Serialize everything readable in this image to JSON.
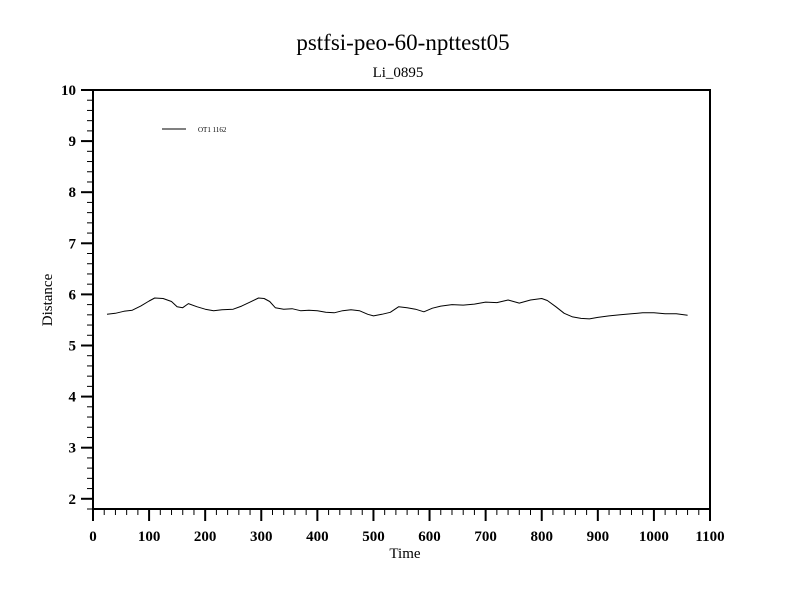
{
  "chart_data": {
    "type": "line",
    "title": "pstfsi-peo-60-npttest05",
    "subtitle": "Li_0895",
    "xlabel": "Time",
    "ylabel": "Distance",
    "xlim": [
      0,
      1100
    ],
    "ylim": [
      1.8,
      10
    ],
    "xticks": [
      0,
      100,
      200,
      300,
      400,
      500,
      600,
      700,
      800,
      900,
      1000,
      1100
    ],
    "yticks": [
      2,
      3,
      4,
      5,
      6,
      7,
      8,
      9,
      10
    ],
    "x_minor_step": 20,
    "y_minor_step": 0.2,
    "grid": false,
    "legend_position": "top-left",
    "series": [
      {
        "name": "OT1 1162",
        "color": "#000000",
        "x": [
          25,
          40,
          55,
          70,
          85,
          100,
          110,
          125,
          140,
          150,
          160,
          170,
          185,
          200,
          215,
          230,
          250,
          265,
          280,
          295,
          305,
          315,
          325,
          340,
          355,
          370,
          385,
          400,
          415,
          430,
          445,
          460,
          475,
          490,
          500,
          515,
          530,
          545,
          560,
          575,
          590,
          605,
          620,
          640,
          660,
          680,
          700,
          720,
          740,
          760,
          780,
          800,
          810,
          825,
          840,
          855,
          870,
          885,
          900,
          920,
          940,
          960,
          980,
          1000,
          1020,
          1040,
          1060
        ],
        "y": [
          5.61,
          5.63,
          5.67,
          5.69,
          5.77,
          5.87,
          5.93,
          5.92,
          5.86,
          5.76,
          5.74,
          5.82,
          5.76,
          5.71,
          5.68,
          5.7,
          5.71,
          5.77,
          5.85,
          5.93,
          5.92,
          5.86,
          5.74,
          5.71,
          5.72,
          5.68,
          5.69,
          5.68,
          5.65,
          5.64,
          5.68,
          5.7,
          5.68,
          5.61,
          5.58,
          5.61,
          5.65,
          5.76,
          5.74,
          5.71,
          5.66,
          5.73,
          5.77,
          5.8,
          5.79,
          5.81,
          5.85,
          5.84,
          5.89,
          5.83,
          5.89,
          5.92,
          5.88,
          5.76,
          5.63,
          5.56,
          5.53,
          5.52,
          5.55,
          5.58,
          5.6,
          5.62,
          5.64,
          5.64,
          5.62,
          5.62,
          5.59
        ]
      }
    ]
  }
}
